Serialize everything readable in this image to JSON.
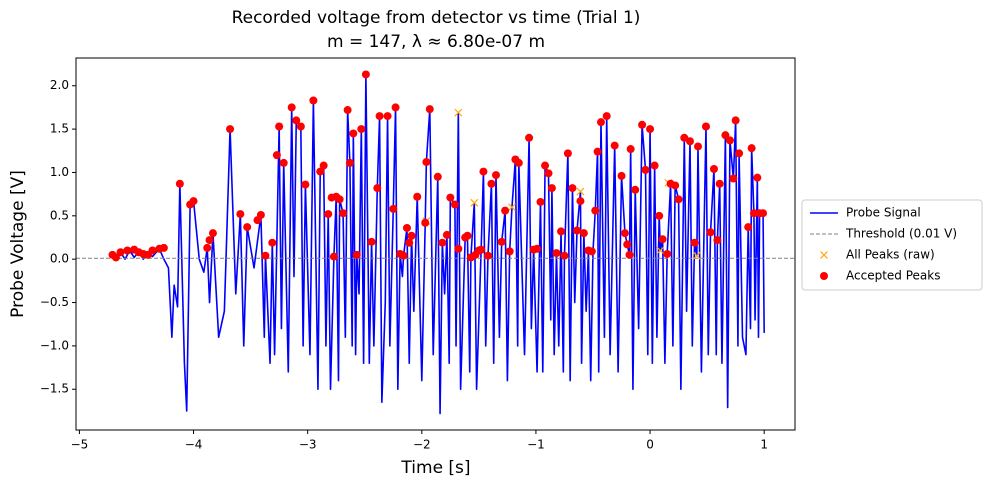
{
  "chart_data": {
    "type": "line",
    "title": "Recorded voltage from detector vs time (Trial 1)",
    "subtitle": "m = 147, λ ≈ 6.80e-07 m",
    "x_label": "Time [s]",
    "y_label": "Probe Voltage [V]",
    "xlim": [
      -5.03,
      1.27
    ],
    "ylim": [
      -1.97,
      2.32
    ],
    "xticks": [
      {
        "value": -5,
        "label": "−5"
      },
      {
        "value": -4,
        "label": "−4"
      },
      {
        "value": -3,
        "label": "−3"
      },
      {
        "value": -2,
        "label": "−2"
      },
      {
        "value": -1,
        "label": "−1"
      },
      0,
      1
    ],
    "yticks": [
      {
        "value": -1.5,
        "label": "−1.5"
      },
      {
        "value": -1,
        "label": "−1.0"
      },
      {
        "value": -0.5,
        "label": "−0.5"
      },
      {
        "value": 0,
        "label": "0.0"
      },
      {
        "value": 0.5,
        "label": "0.5"
      },
      {
        "value": 1,
        "label": "1.0"
      },
      {
        "value": 1.5,
        "label": "1.5"
      },
      {
        "value": 2,
        "label": "2.0"
      }
    ],
    "legend": "outside right",
    "series": [
      {
        "name": "Probe Signal",
        "kind": "line",
        "color": "#0000ff",
        "x": [
          -4.72,
          -4.71,
          -4.68,
          -4.64,
          -4.6,
          -4.56,
          -4.52,
          -4.48,
          -4.44,
          -4.4,
          -4.36,
          -4.3,
          -4.26,
          -4.22,
          -4.19,
          -4.17,
          -4.14,
          -4.12,
          -4.08,
          -4.06,
          -4.03,
          -4.0,
          -3.95,
          -3.91,
          -3.88,
          -3.86,
          -3.83,
          -3.78,
          -3.73,
          -3.68,
          -3.63,
          -3.59,
          -3.56,
          -3.53,
          -3.47,
          -3.41,
          -3.38,
          -3.37,
          -3.33,
          -3.31,
          -3.29,
          -3.25,
          -3.23,
          -3.21,
          -3.17,
          -3.14,
          -3.12,
          -3.1,
          -3.06,
          -3.04,
          -3.02,
          -2.98,
          -2.95,
          -2.91,
          -2.89,
          -2.86,
          -2.84,
          -2.82,
          -2.8,
          -2.77,
          -2.75,
          -2.73,
          -2.72,
          -2.69,
          -2.67,
          -2.65,
          -2.63,
          -2.61,
          -2.6,
          -2.58,
          -2.57,
          -2.55,
          -2.53,
          -2.51,
          -2.49,
          -2.46,
          -2.44,
          -2.42,
          -2.39,
          -2.37,
          -2.35,
          -2.32,
          -2.3,
          -2.28,
          -2.25,
          -2.23,
          -2.21,
          -2.19,
          -2.17,
          -2.16,
          -2.13,
          -2.11,
          -2.09,
          -2.07,
          -2.04,
          -2.0,
          -1.97,
          -1.96,
          -1.93,
          -1.9,
          -1.86,
          -1.84,
          -1.82,
          -1.8,
          -1.78,
          -1.76,
          -1.75,
          -1.71,
          -1.7,
          -1.68,
          -1.66,
          -1.62,
          -1.6,
          -1.58,
          -1.57,
          -1.54,
          -1.52,
          -1.48,
          -1.46,
          -1.44,
          -1.42,
          -1.39,
          -1.37,
          -1.35,
          -1.32,
          -1.3,
          -1.27,
          -1.25,
          -1.23,
          -1.21,
          -1.18,
          -1.16,
          -1.15,
          -1.1,
          -1.06,
          -1.04,
          -1.02,
          -0.99,
          -0.96,
          -0.94,
          -0.92,
          -0.89,
          -0.87,
          -0.86,
          -0.84,
          -0.82,
          -0.8,
          -0.78,
          -0.76,
          -0.75,
          -0.72,
          -0.7,
          -0.68,
          -0.66,
          -0.64,
          -0.61,
          -0.6,
          -0.58,
          -0.56,
          -0.54,
          -0.52,
          -0.5,
          -0.48,
          -0.46,
          -0.45,
          -0.43,
          -0.4,
          -0.38,
          -0.35,
          -0.31,
          -0.28,
          -0.25,
          -0.22,
          -0.2,
          -0.18,
          -0.17,
          -0.15,
          -0.13,
          -0.1,
          -0.07,
          -0.04,
          -0.02,
          0.0,
          0.02,
          0.04,
          0.06,
          0.08,
          0.09,
          0.11,
          0.13,
          0.15,
          0.18,
          0.2,
          0.22,
          0.25,
          0.27,
          0.3,
          0.32,
          0.35,
          0.37,
          0.39,
          0.41,
          0.42,
          0.45,
          0.49,
          0.51,
          0.53,
          0.56,
          0.58,
          0.59,
          0.61,
          0.63,
          0.66,
          0.68,
          0.7,
          0.73,
          0.75,
          0.77,
          0.78,
          0.81,
          0.84,
          0.86,
          0.88,
          0.89,
          0.91,
          0.92,
          0.94,
          0.95,
          0.96,
          0.99,
          1.0
        ],
        "values": [
          0.03,
          0.05,
          0.0,
          0.08,
          0.0,
          0.1,
          0.02,
          0.09,
          0.0,
          0.08,
          0.03,
          0.12,
          0.0,
          -0.1,
          -0.9,
          -0.3,
          -0.55,
          0.87,
          -1.2,
          -1.75,
          0.63,
          0.67,
          0.0,
          -0.15,
          0.13,
          -0.5,
          0.3,
          -0.9,
          -0.6,
          1.5,
          -0.4,
          0.52,
          -1.0,
          0.37,
          -0.1,
          0.51,
          -0.9,
          0.04,
          -1.2,
          0.19,
          -1.1,
          1.53,
          -0.8,
          1.11,
          -1.3,
          1.75,
          -0.2,
          1.6,
          1.53,
          -1.0,
          0.86,
          -1.1,
          1.83,
          -1.5,
          1.01,
          1.08,
          -1.0,
          0.52,
          -1.5,
          0.03,
          0.72,
          -1.4,
          0.69,
          0.53,
          -0.9,
          1.72,
          1.11,
          -1.0,
          1.45,
          -1.1,
          0.05,
          -0.4,
          1.5,
          -1.2,
          2.13,
          -1.2,
          0.2,
          -1.0,
          0.82,
          1.65,
          -1.65,
          -0.5,
          1.65,
          -1.0,
          0.58,
          1.75,
          -1.5,
          0.06,
          -0.2,
          0.04,
          0.36,
          -1.2,
          0.27,
          -0.6,
          0.72,
          -1.4,
          0.42,
          1.12,
          1.73,
          -1.1,
          0.95,
          -1.78,
          0.19,
          -0.4,
          0.28,
          -1.2,
          0.71,
          0.63,
          -1.0,
          1.69,
          -1.5,
          0.25,
          0.27,
          -1.3,
          0.02,
          0.65,
          -1.5,
          0.11,
          1.01,
          -1.0,
          0.04,
          0.87,
          -1.2,
          0.97,
          -0.9,
          0.2,
          0.56,
          -1.4,
          0.09,
          0.6,
          1.15,
          -1.0,
          1.11,
          -1.1,
          1.4,
          -0.8,
          0.11,
          -1.3,
          0.66,
          -1.3,
          1.08,
          0.99,
          -0.7,
          0.82,
          -1.1,
          0.07,
          -1.0,
          0.32,
          -1.3,
          0.04,
          1.22,
          -1.4,
          0.82,
          -0.5,
          0.33,
          0.78,
          -1.2,
          0.3,
          -0.6,
          0.1,
          -1.4,
          0.09,
          0.56,
          1.24,
          -1.3,
          1.58,
          -0.9,
          1.65,
          -1.1,
          1.31,
          -1.3,
          0.96,
          0.3,
          0.17,
          0.05,
          1.27,
          -1.5,
          0.8,
          -0.8,
          1.55,
          1.03,
          -1.1,
          1.5,
          -1.2,
          1.08,
          -0.9,
          0.5,
          0.1,
          0.23,
          -1.2,
          0.06,
          0.87,
          -1.0,
          0.85,
          0.69,
          -1.5,
          1.4,
          -0.6,
          1.36,
          -1.0,
          0.19,
          0.04,
          1.3,
          -1.3,
          1.53,
          -1.1,
          0.31,
          1.04,
          -1.1,
          0.22,
          0.87,
          -1.2,
          1.43,
          -1.71,
          1.37,
          0.93,
          1.6,
          -1.0,
          1.22,
          -0.9,
          -1.1,
          0.37,
          -0.8,
          1.28,
          0.53,
          -0.7,
          0.94,
          -0.9,
          0.53,
          0.53,
          -0.85
        ]
      },
      {
        "name": "Threshold (0.01 V)",
        "kind": "hline",
        "color": "#808080",
        "values": [
          0.01
        ]
      },
      {
        "name": "All Peaks (raw)",
        "kind": "scatter",
        "marker": "x",
        "color": "#ffa500",
        "x": [
          -1.96,
          -1.68,
          -1.54,
          -1.21,
          -0.61,
          0.09,
          0.16,
          0.41
        ],
        "values": [
          0.44,
          1.69,
          0.65,
          0.6,
          0.78,
          0.1,
          0.88,
          0.04
        ]
      },
      {
        "name": "Accepted Peaks",
        "kind": "scatter",
        "marker": "o",
        "color": "#ff0000",
        "x": [
          -4.71,
          -4.68,
          -4.64,
          -4.58,
          -4.52,
          -4.48,
          -4.44,
          -4.4,
          -4.36,
          -4.3,
          -4.26,
          -4.12,
          -4.03,
          -4.0,
          -3.88,
          -3.86,
          -3.83,
          -3.68,
          -3.59,
          -3.53,
          -3.44,
          -3.41,
          -3.37,
          -3.31,
          -3.27,
          -3.25,
          -3.21,
          -3.14,
          -3.1,
          -3.06,
          -3.02,
          -2.95,
          -2.89,
          -2.86,
          -2.82,
          -2.79,
          -2.77,
          -2.75,
          -2.72,
          -2.69,
          -2.65,
          -2.63,
          -2.6,
          -2.57,
          -2.53,
          -2.49,
          -2.44,
          -2.39,
          -2.37,
          -2.3,
          -2.25,
          -2.23,
          -2.19,
          -2.16,
          -2.13,
          -2.11,
          -2.09,
          -2.04,
          -1.97,
          -1.96,
          -1.93,
          -1.86,
          -1.82,
          -1.78,
          -1.75,
          -1.71,
          -1.68,
          -1.62,
          -1.6,
          -1.57,
          -1.53,
          -1.5,
          -1.48,
          -1.46,
          -1.42,
          -1.39,
          -1.35,
          -1.3,
          -1.27,
          -1.23,
          -1.18,
          -1.15,
          -1.06,
          -1.02,
          -0.99,
          -0.96,
          -0.92,
          -0.89,
          -0.86,
          -0.82,
          -0.78,
          -0.75,
          -0.72,
          -0.68,
          -0.64,
          -0.61,
          -0.58,
          -0.54,
          -0.51,
          -0.48,
          -0.46,
          -0.43,
          -0.38,
          -0.31,
          -0.25,
          -0.22,
          -0.2,
          -0.18,
          -0.17,
          -0.13,
          -0.07,
          -0.04,
          0.0,
          0.04,
          0.08,
          0.11,
          0.15,
          0.18,
          0.22,
          0.25,
          0.3,
          0.35,
          0.39,
          0.42,
          0.49,
          0.53,
          0.56,
          0.59,
          0.61,
          0.66,
          0.7,
          0.73,
          0.75,
          0.78,
          0.86,
          0.89,
          0.91,
          0.94,
          0.96,
          0.99
        ],
        "values": [
          0.05,
          0.02,
          0.08,
          0.1,
          0.11,
          0.08,
          0.06,
          0.05,
          0.1,
          0.12,
          0.13,
          0.87,
          0.63,
          0.67,
          0.13,
          0.22,
          0.3,
          1.5,
          0.52,
          0.37,
          0.45,
          0.51,
          0.04,
          0.19,
          1.2,
          1.53,
          1.11,
          1.75,
          1.6,
          1.53,
          0.86,
          1.83,
          1.01,
          1.08,
          0.52,
          0.71,
          0.03,
          0.72,
          0.69,
          0.53,
          1.72,
          1.11,
          1.45,
          0.05,
          1.5,
          2.13,
          0.2,
          0.82,
          1.65,
          1.65,
          0.58,
          1.75,
          0.06,
          0.04,
          0.36,
          0.19,
          0.27,
          0.72,
          0.42,
          1.12,
          1.73,
          0.95,
          0.19,
          0.28,
          0.71,
          0.63,
          0.12,
          0.25,
          0.27,
          0.02,
          0.05,
          0.1,
          0.11,
          1.01,
          0.04,
          0.87,
          0.97,
          0.2,
          0.56,
          0.09,
          1.15,
          1.11,
          1.4,
          0.11,
          0.12,
          0.66,
          1.08,
          0.99,
          0.82,
          0.07,
          0.32,
          0.04,
          1.22,
          0.82,
          0.33,
          0.67,
          0.3,
          0.1,
          0.09,
          0.56,
          1.24,
          1.58,
          1.65,
          1.31,
          0.96,
          0.3,
          0.17,
          0.05,
          1.27,
          0.8,
          1.55,
          1.03,
          1.5,
          1.08,
          0.5,
          0.23,
          0.06,
          0.87,
          0.85,
          0.69,
          1.4,
          1.36,
          0.19,
          1.3,
          1.53,
          0.31,
          1.04,
          0.22,
          0.87,
          1.43,
          1.37,
          0.93,
          1.6,
          1.22,
          0.37,
          1.28,
          0.53,
          0.94,
          0.53,
          0.53
        ]
      }
    ]
  }
}
